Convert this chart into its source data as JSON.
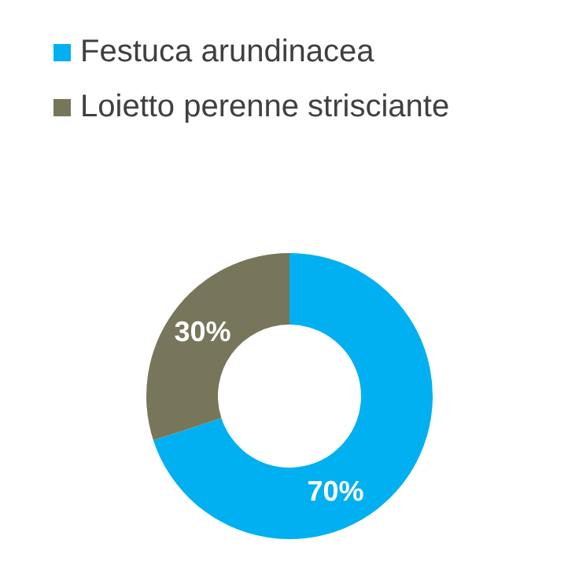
{
  "chart_data": {
    "type": "donut",
    "categories": [
      "Festuca arundinacea",
      "Loietto perenne strisciante"
    ],
    "values": [
      70,
      30
    ],
    "colors": [
      "#00b0f0",
      "#77765a"
    ],
    "value_labels": [
      "70%",
      "30%"
    ],
    "legend": "top"
  }
}
